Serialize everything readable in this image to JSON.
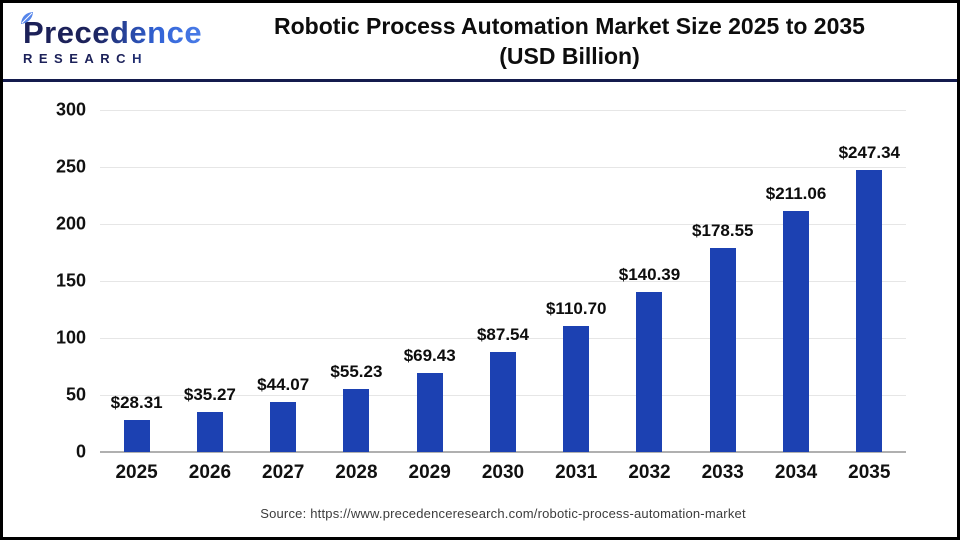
{
  "header": {
    "logo": {
      "name": "Precedence",
      "subtitle": "RESEARCH"
    },
    "title_line1": "Robotic Process Automation Market Size 2025 to 2035",
    "title_line2": "(USD Billion)"
  },
  "chart_data": {
    "type": "bar",
    "title": "Robotic Process Automation Market Size 2025 to 2035 (USD Billion)",
    "categories": [
      "2025",
      "2026",
      "2027",
      "2028",
      "2029",
      "2030",
      "2031",
      "2032",
      "2033",
      "2034",
      "2035"
    ],
    "values": [
      28.31,
      35.27,
      44.07,
      55.23,
      69.43,
      87.54,
      110.7,
      140.39,
      178.55,
      211.06,
      247.34
    ],
    "value_labels": [
      "$28.31",
      "$35.27",
      "$44.07",
      "$55.23",
      "$69.43",
      "$87.54",
      "$110.70",
      "$140.39",
      "$178.55",
      "$211.06",
      "$247.34"
    ],
    "xlabel": "",
    "ylabel": "",
    "ylim": [
      0,
      300
    ],
    "yticks": [
      0,
      50,
      100,
      150,
      200,
      250,
      300
    ],
    "grid": true,
    "legend": false,
    "bar_color": "#1c41b2"
  },
  "footer": {
    "source": "Source: https://www.precedenceresearch.com/robotic-process-automation-market"
  },
  "colors": {
    "bar": "#1c41b2",
    "gridline": "#e6e6e6",
    "zero_line": "#b0b0b0",
    "divider_navy": "#141b4d",
    "logo_navy": "#1c2159",
    "logo_blue": "#4a7ce8",
    "text": "#0d0d0d",
    "source_text": "#3c3c3c"
  }
}
